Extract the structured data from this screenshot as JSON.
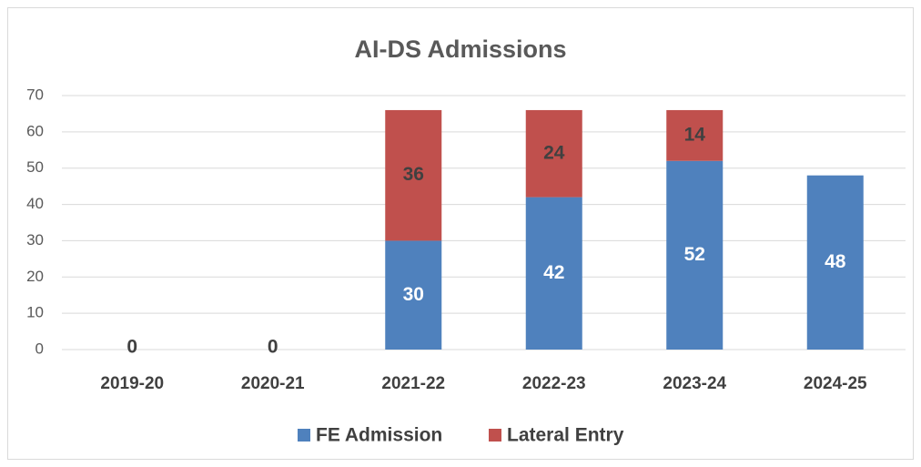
{
  "chart_data": {
    "type": "stacked_bar",
    "title": "AI-DS Admissions",
    "categories": [
      "2019-20",
      "2020-21",
      "2021-22",
      "2022-23",
      "2023-24",
      "2024-25"
    ],
    "series": [
      {
        "name": "FE Admission",
        "color": "#4f81bd",
        "values": [
          0,
          0,
          30,
          42,
          52,
          48
        ]
      },
      {
        "name": "Lateral Entry",
        "color": "#c0504d",
        "values": [
          null,
          null,
          36,
          24,
          14,
          null
        ]
      }
    ],
    "ylim": [
      0,
      70
    ],
    "yticks": [
      0,
      10,
      20,
      30,
      40,
      50,
      60,
      70
    ],
    "grid": true,
    "legend": "bottom"
  }
}
